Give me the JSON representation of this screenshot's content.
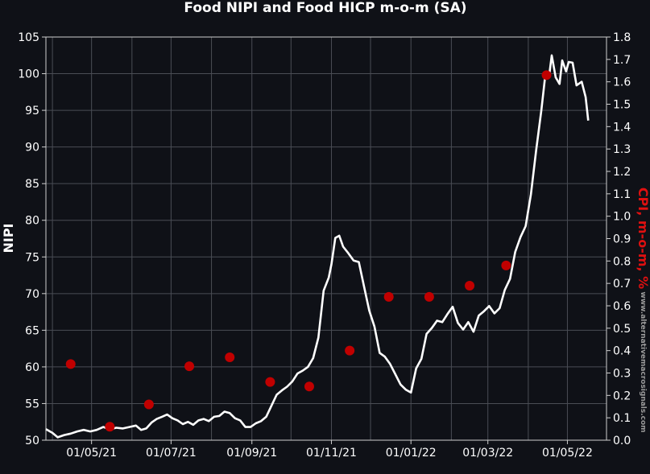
{
  "colors": {
    "background": "#0f1117",
    "grid": "#4a4d55",
    "nipi_line": "#ffffff",
    "cpi_points": "#c00000",
    "ylabel_right": "#e01010",
    "watermark": "#9a9a9a"
  },
  "chart_data": {
    "type": "line",
    "title": "Food NIPI and Food HICP m-o-m (SA)",
    "ylabel_left": "NIPI",
    "ylabel_right": "CPI, m-o-m, %",
    "watermark": "www.alternativemacrosignals.com",
    "grid": true,
    "ylim_left": [
      50,
      105
    ],
    "ylim_right": [
      0.0,
      1.8
    ],
    "yticks_left": [
      "50",
      "55",
      "60",
      "65",
      "70",
      "75",
      "80",
      "85",
      "90",
      "95",
      "100",
      "105"
    ],
    "yticks_right": [
      "0.0",
      "0.1",
      "0.2",
      "0.3",
      "0.4",
      "0.5",
      "0.6",
      "0.7",
      "0.8",
      "0.9",
      "1.0",
      "1.1",
      "1.2",
      "1.3",
      "1.4",
      "1.5",
      "1.6",
      "1.7",
      "1.8"
    ],
    "xlim": [
      "2021-03-27",
      "2022-05-31"
    ],
    "xticks": [
      {
        "date": "2021-05-01",
        "label": "01/05/21"
      },
      {
        "date": "2021-07-01",
        "label": "01/07/21"
      },
      {
        "date": "2021-09-01",
        "label": "01/09/21"
      },
      {
        "date": "2021-11-01",
        "label": "01/11/21"
      },
      {
        "date": "2022-01-01",
        "label": "01/01/22"
      },
      {
        "date": "2022-03-01",
        "label": "01/03/22"
      },
      {
        "date": "2022-05-01",
        "label": "01/05/22"
      }
    ],
    "gridlines_x": [
      "2021-04-01",
      "2021-05-01",
      "2021-06-01",
      "2021-07-01",
      "2021-08-01",
      "2021-09-01",
      "2021-10-01",
      "2021-11-01",
      "2021-12-01",
      "2022-01-01",
      "2022-02-01",
      "2022-03-01",
      "2022-04-01",
      "2022-05-01"
    ],
    "series": [
      {
        "name": "NIPI",
        "axis": "left",
        "style": "line",
        "points": [
          [
            "2021-03-27",
            51.5
          ],
          [
            "2021-04-01",
            51.0
          ],
          [
            "2021-04-05",
            50.4
          ],
          [
            "2021-04-10",
            50.7
          ],
          [
            "2021-04-15",
            50.9
          ],
          [
            "2021-04-20",
            51.2
          ],
          [
            "2021-04-25",
            51.4
          ],
          [
            "2021-04-30",
            51.2
          ],
          [
            "2021-05-05",
            51.4
          ],
          [
            "2021-05-10",
            51.8
          ],
          [
            "2021-05-15",
            51.5
          ],
          [
            "2021-05-20",
            51.7
          ],
          [
            "2021-05-25",
            51.6
          ],
          [
            "2021-05-30",
            51.8
          ],
          [
            "2021-06-04",
            52.0
          ],
          [
            "2021-06-08",
            51.4
          ],
          [
            "2021-06-12",
            51.6
          ],
          [
            "2021-06-16",
            52.4
          ],
          [
            "2021-06-20",
            52.9
          ],
          [
            "2021-06-24",
            53.2
          ],
          [
            "2021-06-28",
            53.5
          ],
          [
            "2021-07-02",
            53.0
          ],
          [
            "2021-07-06",
            52.7
          ],
          [
            "2021-07-10",
            52.2
          ],
          [
            "2021-07-14",
            52.5
          ],
          [
            "2021-07-18",
            52.1
          ],
          [
            "2021-07-22",
            52.7
          ],
          [
            "2021-07-26",
            52.9
          ],
          [
            "2021-07-30",
            52.6
          ],
          [
            "2021-08-03",
            53.2
          ],
          [
            "2021-08-07",
            53.3
          ],
          [
            "2021-08-11",
            53.9
          ],
          [
            "2021-08-15",
            53.7
          ],
          [
            "2021-08-19",
            53.0
          ],
          [
            "2021-08-23",
            52.7
          ],
          [
            "2021-08-27",
            51.8
          ],
          [
            "2021-08-31",
            51.8
          ],
          [
            "2021-09-04",
            52.3
          ],
          [
            "2021-09-08",
            52.6
          ],
          [
            "2021-09-12",
            53.2
          ],
          [
            "2021-09-16",
            54.7
          ],
          [
            "2021-09-20",
            56.2
          ],
          [
            "2021-09-24",
            56.8
          ],
          [
            "2021-09-28",
            57.3
          ],
          [
            "2021-10-02",
            58.0
          ],
          [
            "2021-10-06",
            59.1
          ],
          [
            "2021-10-10",
            59.5
          ],
          [
            "2021-10-14",
            60.0
          ],
          [
            "2021-10-18",
            61.2
          ],
          [
            "2021-10-22",
            64.0
          ],
          [
            "2021-10-26",
            70.4
          ],
          [
            "2021-10-30",
            72.2
          ],
          [
            "2021-11-01",
            74.0
          ],
          [
            "2021-11-04",
            77.6
          ],
          [
            "2021-11-07",
            77.9
          ],
          [
            "2021-11-10",
            76.4
          ],
          [
            "2021-11-14",
            75.5
          ],
          [
            "2021-11-18",
            74.5
          ],
          [
            "2021-11-22",
            74.3
          ],
          [
            "2021-11-26",
            71.0
          ],
          [
            "2021-11-30",
            67.7
          ],
          [
            "2021-12-04",
            65.5
          ],
          [
            "2021-12-08",
            61.9
          ],
          [
            "2021-12-12",
            61.4
          ],
          [
            "2021-12-16",
            60.4
          ],
          [
            "2021-12-20",
            59.0
          ],
          [
            "2021-12-24",
            57.6
          ],
          [
            "2021-12-28",
            56.9
          ],
          [
            "2022-01-01",
            56.5
          ],
          [
            "2022-01-05",
            59.8
          ],
          [
            "2022-01-09",
            61.1
          ],
          [
            "2022-01-13",
            64.5
          ],
          [
            "2022-01-17",
            65.3
          ],
          [
            "2022-01-21",
            66.3
          ],
          [
            "2022-01-25",
            66.1
          ],
          [
            "2022-01-29",
            67.2
          ],
          [
            "2022-02-02",
            68.2
          ],
          [
            "2022-02-06",
            66.0
          ],
          [
            "2022-02-10",
            65.1
          ],
          [
            "2022-02-14",
            66.1
          ],
          [
            "2022-02-18",
            64.8
          ],
          [
            "2022-02-22",
            67.0
          ],
          [
            "2022-02-26",
            67.6
          ],
          [
            "2022-03-02",
            68.3
          ],
          [
            "2022-03-06",
            67.3
          ],
          [
            "2022-03-10",
            68.0
          ],
          [
            "2022-03-14",
            70.5
          ],
          [
            "2022-03-18",
            72.0
          ],
          [
            "2022-03-22",
            75.7
          ],
          [
            "2022-03-26",
            77.7
          ],
          [
            "2022-03-30",
            79.2
          ],
          [
            "2022-04-03",
            83.5
          ],
          [
            "2022-04-07",
            89.5
          ],
          [
            "2022-04-11",
            95.0
          ],
          [
            "2022-04-14",
            99.7
          ],
          [
            "2022-04-17",
            99.7
          ],
          [
            "2022-04-19",
            102.5
          ],
          [
            "2022-04-22",
            99.5
          ],
          [
            "2022-04-25",
            98.6
          ],
          [
            "2022-04-27",
            101.8
          ],
          [
            "2022-04-30",
            100.3
          ],
          [
            "2022-05-02",
            101.6
          ],
          [
            "2022-05-05",
            101.5
          ],
          [
            "2022-05-08",
            98.4
          ],
          [
            "2022-05-12",
            98.9
          ],
          [
            "2022-05-15",
            96.8
          ],
          [
            "2022-05-17",
            93.6
          ]
        ]
      },
      {
        "name": "CPI",
        "axis": "right",
        "style": "points",
        "points": [
          [
            "2021-04-15",
            0.34
          ],
          [
            "2021-05-15",
            0.06
          ],
          [
            "2021-06-14",
            0.16
          ],
          [
            "2021-07-15",
            0.33
          ],
          [
            "2021-08-15",
            0.37
          ],
          [
            "2021-09-15",
            0.26
          ],
          [
            "2021-10-15",
            0.24
          ],
          [
            "2021-11-15",
            0.4
          ],
          [
            "2021-12-15",
            0.64
          ],
          [
            "2022-01-15",
            0.64
          ],
          [
            "2022-02-15",
            0.69
          ],
          [
            "2022-03-15",
            0.78
          ],
          [
            "2022-04-15",
            1.63
          ]
        ]
      }
    ]
  }
}
